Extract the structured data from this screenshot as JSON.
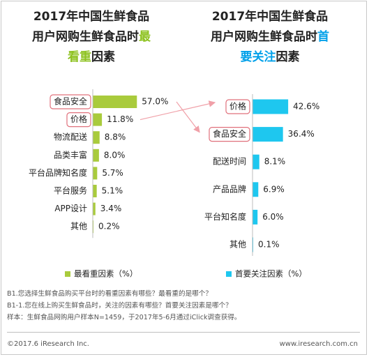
{
  "chart_data": [
    {
      "type": "bar",
      "orientation": "horizontal",
      "title": {
        "line1": "2017年中国生鲜食品",
        "line2_prefix": "用户网购生鲜食品时",
        "line2_highlight": "最",
        "line3_highlight": "看重",
        "line3_suffix": "因素"
      },
      "categories": [
        "食品安全",
        "价格",
        "物流配送",
        "品类丰富",
        "平台品牌知名度",
        "平台服务",
        "APP设计",
        "其他"
      ],
      "values": [
        57.0,
        11.8,
        8.8,
        8.0,
        5.7,
        5.1,
        3.4,
        0.2
      ],
      "value_labels": [
        "57.0%",
        "11.8%",
        "8.8%",
        "8.0%",
        "5.7%",
        "5.1%",
        "3.4%",
        "0.2%"
      ],
      "highlighted": [
        "食品安全",
        "价格"
      ],
      "color": "#a9cb3c",
      "legend": "最看重因素（%）"
    },
    {
      "type": "bar",
      "orientation": "horizontal",
      "title": {
        "line1": "2017年中国生鲜食品",
        "line2_prefix": "用户网购生鲜食品时",
        "line2_highlight": "首",
        "line3_highlight": "要关注",
        "line3_suffix": "因素"
      },
      "categories": [
        "价格",
        "食品安全",
        "配送时间",
        "产品品牌",
        "平台知名度",
        "其他"
      ],
      "values": [
        42.6,
        36.4,
        8.1,
        6.9,
        6.0,
        0.1
      ],
      "value_labels": [
        "42.6%",
        "36.4%",
        "8.1%",
        "6.9%",
        "6.0%",
        "0.1%"
      ],
      "highlighted": [
        "价格",
        "食品安全"
      ],
      "color": "#1ec7ef",
      "legend": "首要关注因素（%）"
    }
  ],
  "colors": {
    "highlight_box": "#e0707b",
    "arrow": "#f0a0a8",
    "title_green": "#8dc21f",
    "title_blue": "#00a0e9"
  },
  "notes": [
    "B1.您选择生鲜食品购买平台时的看重因素有哪些？最看重的是哪个？",
    "B1-1.您在线上购买生鲜食品时，关注的因素有哪些？首要关注因素是哪个？",
    "样本：生鲜食品网购用户样本N=1459，于2017年5-6月通过iClick调查获得。"
  ],
  "footer": {
    "copyright": "©2017.6 iResearch Inc.",
    "website": "www.iresearch.com.cn"
  }
}
